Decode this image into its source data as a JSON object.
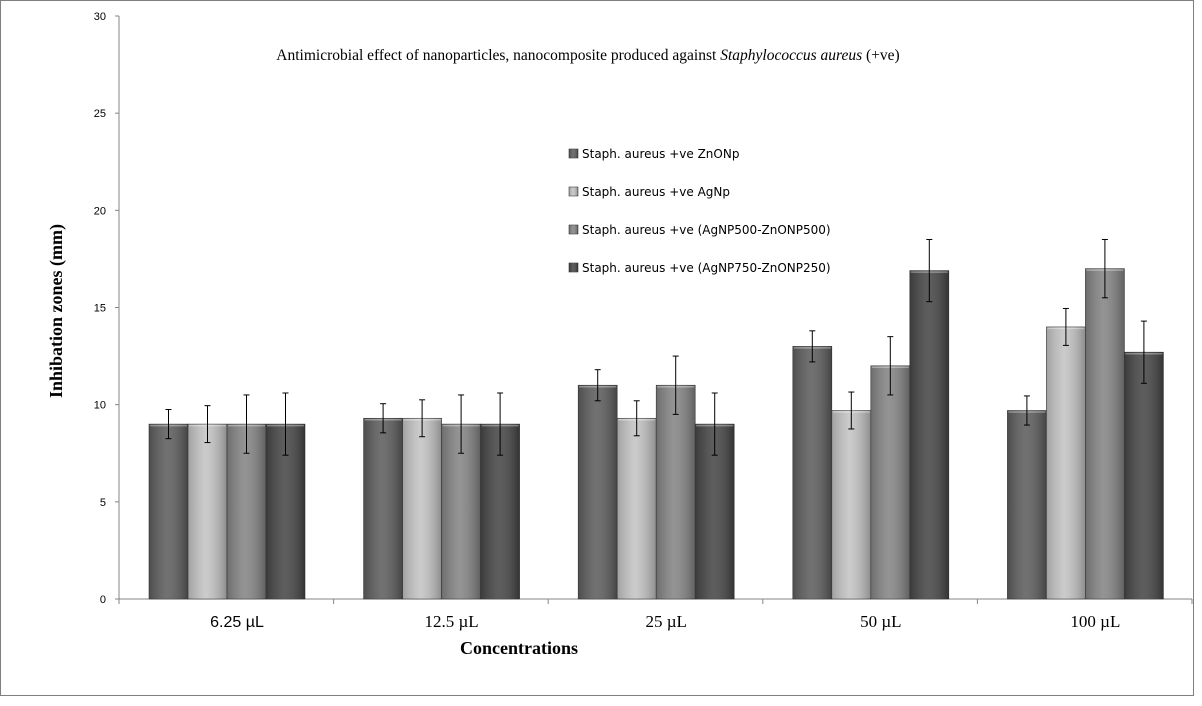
{
  "chart_data": {
    "type": "bar",
    "title_main": "Antimicrobial  effect of nanoparticles, nanocomposite produced against ",
    "title_italic": "Staphylococcus aureus",
    "title_end": " (+ve)",
    "xlabel": "Concentrations",
    "ylabel": "Inhibation  zones (mm)",
    "ylim": [
      0,
      30
    ],
    "yticks": [
      0,
      5,
      10,
      15,
      20,
      25,
      30
    ],
    "categories": [
      "6.25 µL",
      "12.5 µL",
      "25 µL",
      "50 µL",
      "100 µL"
    ],
    "grid": false,
    "legend_position": "upper-center",
    "series": [
      {
        "name": "Staph. aureus +ve ZnONp",
        "color": "#5e5e5e",
        "values": [
          9.0,
          9.3,
          11.0,
          13.0,
          9.7
        ],
        "errors": [
          0.75,
          0.75,
          0.8,
          0.8,
          0.75
        ]
      },
      {
        "name": "Staph. aureus +ve AgNp",
        "color": "#c4c4c4",
        "values": [
          9.0,
          9.3,
          9.3,
          9.7,
          14.0
        ],
        "errors": [
          0.95,
          0.95,
          0.9,
          0.95,
          0.95
        ]
      },
      {
        "name": "Staph. aureus +ve (AgNP500-ZnONP500)",
        "color": "#858585",
        "values": [
          9.0,
          9.0,
          11.0,
          12.0,
          17.0
        ],
        "errors": [
          1.5,
          1.5,
          1.5,
          1.5,
          1.5
        ]
      },
      {
        "name": "Staph. aureus +ve (AgNP750-ZnONP250)",
        "color": "#474747",
        "values": [
          9.0,
          9.0,
          9.0,
          16.9,
          12.7
        ],
        "errors": [
          1.6,
          1.6,
          1.6,
          1.6,
          1.6
        ]
      }
    ]
  }
}
